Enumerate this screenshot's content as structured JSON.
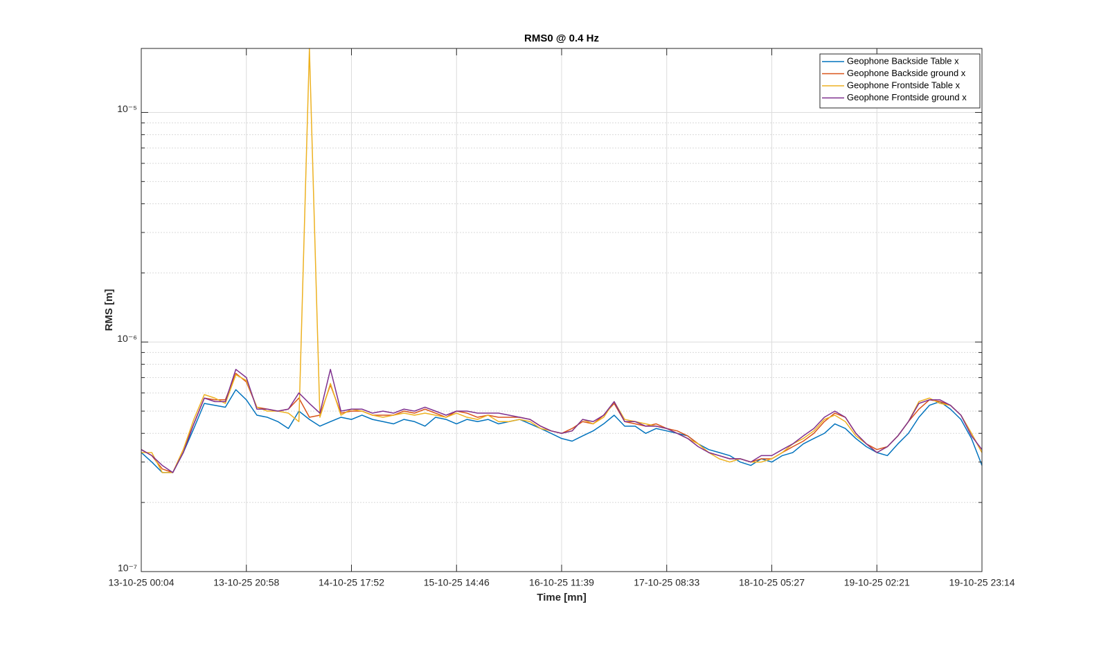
{
  "chart_data": {
    "type": "line",
    "title": "RMS0 @ 0.4 Hz",
    "xlabel": "Time [mn]",
    "ylabel": "RMS [m]",
    "ylog": true,
    "grid": true,
    "legend": "northeast",
    "xlim": [
      0,
      10032
    ],
    "ylim": [
      1e-07,
      1.9e-05
    ],
    "xticks": [
      {
        "value": 0,
        "label": "13-10-25 00:04"
      },
      {
        "value": 1254,
        "label": "13-10-25 20:58"
      },
      {
        "value": 2508,
        "label": "14-10-25 17:52"
      },
      {
        "value": 3762,
        "label": "15-10-25 14:46"
      },
      {
        "value": 5016,
        "label": "16-10-25 11:39"
      },
      {
        "value": 6270,
        "label": "17-10-25 08:33"
      },
      {
        "value": 7524,
        "label": "18-10-25 05:27"
      },
      {
        "value": 8778,
        "label": "19-10-25 02:21"
      },
      {
        "value": 10032,
        "label": "19-10-25 23:14"
      }
    ],
    "yticks": [
      {
        "value": 1e-07,
        "label": "10⁻⁷"
      },
      {
        "value": 1e-06,
        "label": "10⁻⁶"
      },
      {
        "value": 1e-05,
        "label": "10⁻⁵"
      }
    ],
    "yminorticks": [
      2e-07,
      3e-07,
      4e-07,
      5e-07,
      6e-07,
      7e-07,
      8e-07,
      9e-07,
      2e-06,
      3e-06,
      4e-06,
      5e-06,
      6e-06,
      7e-06,
      8e-06,
      9e-06
    ],
    "x": [
      0,
      125.4,
      250.8,
      376.2,
      501.6,
      627,
      752.4,
      877.8,
      1003.2,
      1128.6,
      1254,
      1379.4,
      1504.8,
      1630.2,
      1755.6,
      1881,
      2006.4,
      2131.8,
      2257.2,
      2382.6,
      2508,
      2633.4,
      2758.8,
      2884.2,
      3009.6,
      3135,
      3260.4,
      3385.8,
      3511.2,
      3636.6,
      3762,
      3887.4,
      4012.8,
      4138.2,
      4263.6,
      4389,
      4514.4,
      4639.8,
      4765.2,
      4890.6,
      5016,
      5141.4,
      5266.8,
      5392.2,
      5517.6,
      5643,
      5768.4,
      5893.8,
      6019.2,
      6144.6,
      6270,
      6395.4,
      6520.8,
      6646.2,
      6771.6,
      6897,
      7022.4,
      7147.8,
      7273.2,
      7398.6,
      7524,
      7649.4,
      7774.8,
      7900.2,
      8025.6,
      8151,
      8276.4,
      8401.8,
      8527.2,
      8652.6,
      8778,
      8903.4,
      9028.8,
      9154.2,
      9279.6,
      9405,
      9530.4,
      9655.8,
      9781.2,
      9906.6,
      10032
    ],
    "series": [
      {
        "name": "Geophone Backside Table x",
        "color": "#0072BD",
        "values": [
          3.3e-07,
          3e-07,
          2.7e-07,
          2.7e-07,
          3.3e-07,
          4.2e-07,
          5.4e-07,
          5.3e-07,
          5.2e-07,
          6.2e-07,
          5.6e-07,
          4.8e-07,
          4.7e-07,
          4.5e-07,
          4.2e-07,
          5e-07,
          4.6e-07,
          4.3e-07,
          4.5e-07,
          4.7e-07,
          4.6e-07,
          4.8e-07,
          4.6e-07,
          4.5e-07,
          4.4e-07,
          4.6e-07,
          4.5e-07,
          4.3e-07,
          4.7e-07,
          4.6e-07,
          4.4e-07,
          4.6e-07,
          4.5e-07,
          4.6e-07,
          4.4e-07,
          4.5e-07,
          4.6e-07,
          4.4e-07,
          4.2e-07,
          4e-07,
          3.8e-07,
          3.7e-07,
          3.9e-07,
          4.1e-07,
          4.4e-07,
          4.8e-07,
          4.3e-07,
          4.3e-07,
          4e-07,
          4.2e-07,
          4.1e-07,
          4e-07,
          3.9e-07,
          3.6e-07,
          3.4e-07,
          3.3e-07,
          3.2e-07,
          3e-07,
          2.9e-07,
          3.1e-07,
          3e-07,
          3.2e-07,
          3.3e-07,
          3.6e-07,
          3.8e-07,
          4e-07,
          4.4e-07,
          4.2e-07,
          3.8e-07,
          3.5e-07,
          3.3e-07,
          3.2e-07,
          3.6e-07,
          4e-07,
          4.7e-07,
          5.3e-07,
          5.5e-07,
          5.1e-07,
          4.6e-07,
          3.8e-07,
          2.9e-07
        ]
      },
      {
        "name": "Geophone Backside ground x",
        "color": "#D95319",
        "values": [
          3.4e-07,
          3.2e-07,
          2.8e-07,
          2.7e-07,
          3.4e-07,
          4.4e-07,
          5.7e-07,
          5.6e-07,
          5.6e-07,
          7.3e-07,
          6.7e-07,
          5.2e-07,
          5.1e-07,
          5e-07,
          5.1e-07,
          5.7e-07,
          4.7e-07,
          4.8e-07,
          6.5e-07,
          4.9e-07,
          5e-07,
          5e-07,
          4.8e-07,
          4.8e-07,
          4.8e-07,
          5e-07,
          4.9e-07,
          5.1e-07,
          4.9e-07,
          4.7e-07,
          5e-07,
          4.9e-07,
          4.7e-07,
          4.8e-07,
          4.7e-07,
          4.7e-07,
          4.7e-07,
          4.6e-07,
          4.3e-07,
          4.1e-07,
          4e-07,
          4.2e-07,
          4.5e-07,
          4.4e-07,
          4.8e-07,
          5.4e-07,
          4.5e-07,
          4.4e-07,
          4.3e-07,
          4.4e-07,
          4.2e-07,
          4.1e-07,
          3.9e-07,
          3.6e-07,
          3.3e-07,
          3.2e-07,
          3.1e-07,
          3.1e-07,
          3e-07,
          3.1e-07,
          3.1e-07,
          3.3e-07,
          3.5e-07,
          3.7e-07,
          4e-07,
          4.5e-07,
          4.9e-07,
          4.7e-07,
          4e-07,
          3.6e-07,
          3.4e-07,
          3.5e-07,
          3.9e-07,
          4.5e-07,
          5.1e-07,
          5.6e-07,
          5.5e-07,
          5.3e-07,
          4.8e-07,
          4e-07,
          3.3e-07
        ]
      },
      {
        "name": "Geophone Frontside Table x",
        "color": "#EDB120",
        "values": [
          3.3e-07,
          3.3e-07,
          2.7e-07,
          2.7e-07,
          3.4e-07,
          4.6e-07,
          5.9e-07,
          5.7e-07,
          5.4e-07,
          7.2e-07,
          6.8e-07,
          5.2e-07,
          5e-07,
          5e-07,
          4.9e-07,
          4.5e-07,
          1.9e-05,
          4.7e-07,
          6.6e-07,
          4.8e-07,
          5.1e-07,
          5e-07,
          4.8e-07,
          4.7e-07,
          4.8e-07,
          4.9e-07,
          4.8e-07,
          4.9e-07,
          4.8e-07,
          4.7e-07,
          4.9e-07,
          4.7e-07,
          4.6e-07,
          4.8e-07,
          4.5e-07,
          4.5e-07,
          4.6e-07,
          4.5e-07,
          4.2e-07,
          4.1e-07,
          4e-07,
          4.1e-07,
          4.6e-07,
          4.4e-07,
          4.7e-07,
          5.5e-07,
          4.6e-07,
          4.5e-07,
          4.4e-07,
          4.3e-07,
          4.2e-07,
          4e-07,
          3.8e-07,
          3.6e-07,
          3.3e-07,
          3.1e-07,
          3e-07,
          3.1e-07,
          3e-07,
          3e-07,
          3.1e-07,
          3.3e-07,
          3.6e-07,
          3.8e-07,
          4.1e-07,
          4.6e-07,
          4.8e-07,
          4.5e-07,
          3.9e-07,
          3.6e-07,
          3.3e-07,
          3.5e-07,
          3.9e-07,
          4.5e-07,
          5.5e-07,
          5.7e-07,
          5.4e-07,
          5.3e-07,
          4.8e-07,
          4e-07,
          3.3e-07
        ]
      },
      {
        "name": "Geophone Frontside ground x",
        "color": "#7E2F8E",
        "values": [
          3.4e-07,
          3.2e-07,
          2.9e-07,
          2.7e-07,
          3.3e-07,
          4.4e-07,
          5.7e-07,
          5.5e-07,
          5.5e-07,
          7.6e-07,
          7e-07,
          5.1e-07,
          5.1e-07,
          5e-07,
          5.1e-07,
          6e-07,
          5.4e-07,
          4.9e-07,
          7.6e-07,
          5e-07,
          5.1e-07,
          5.1e-07,
          4.9e-07,
          5e-07,
          4.9e-07,
          5.1e-07,
          5e-07,
          5.2e-07,
          5e-07,
          4.8e-07,
          5e-07,
          5e-07,
          4.9e-07,
          4.9e-07,
          4.9e-07,
          4.8e-07,
          4.7e-07,
          4.6e-07,
          4.3e-07,
          4.1e-07,
          4e-07,
          4.1e-07,
          4.6e-07,
          4.5e-07,
          4.8e-07,
          5.5e-07,
          4.5e-07,
          4.5e-07,
          4.3e-07,
          4.3e-07,
          4.2e-07,
          4e-07,
          3.8e-07,
          3.5e-07,
          3.3e-07,
          3.2e-07,
          3.1e-07,
          3.1e-07,
          3e-07,
          3.2e-07,
          3.2e-07,
          3.4e-07,
          3.6e-07,
          3.9e-07,
          4.2e-07,
          4.7e-07,
          5e-07,
          4.7e-07,
          4e-07,
          3.6e-07,
          3.3e-07,
          3.5e-07,
          3.9e-07,
          4.5e-07,
          5.4e-07,
          5.6e-07,
          5.6e-07,
          5.3e-07,
          4.8e-07,
          3.9e-07,
          3.4e-07
        ]
      }
    ]
  }
}
